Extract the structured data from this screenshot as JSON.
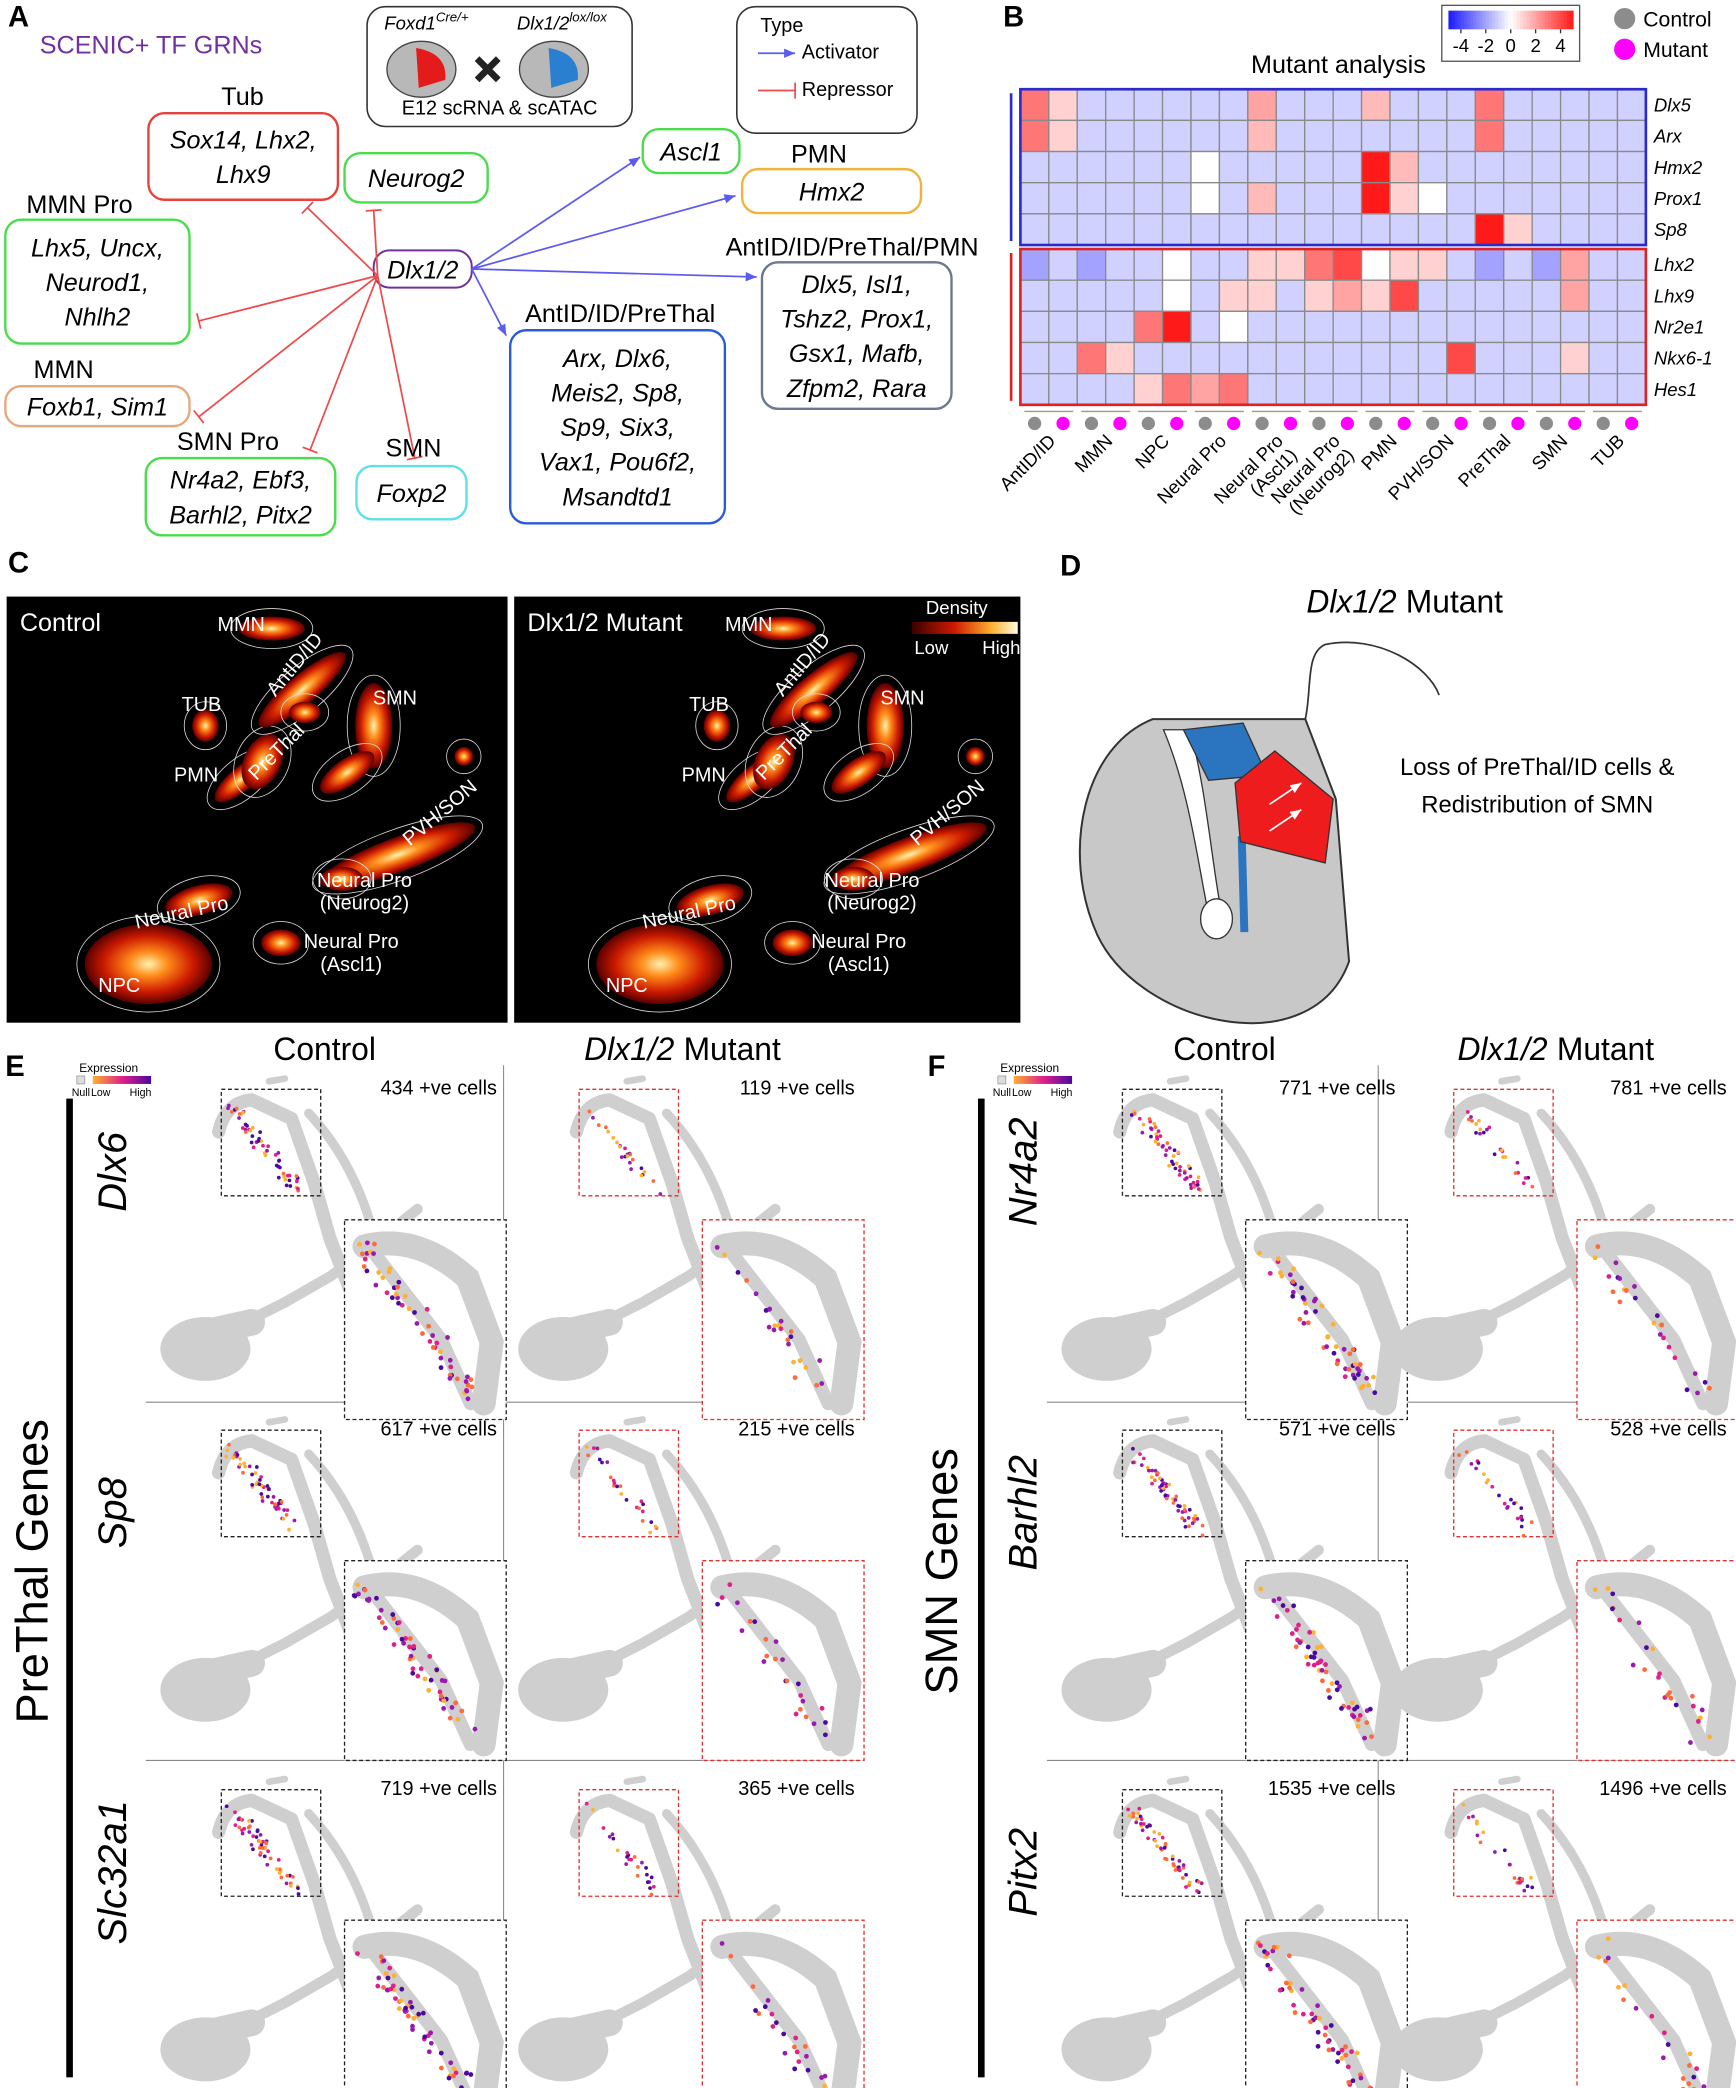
{
  "panel_labels": [
    "A",
    "B",
    "C",
    "D",
    "E",
    "F"
  ],
  "panel_a": {
    "title": "SCENIC+ TF GRNs",
    "cross": {
      "parent_1": "Foxd1",
      "parent_1_allele": "Cre/+",
      "parent_2": "Dlx1/2",
      "parent_2_allele": "lox/lox",
      "assay": "E12 scRNA & scATAC"
    },
    "legend": {
      "title": "Type",
      "activator": "Activator",
      "repressor": "Repressor",
      "activator_color": "#5b5bf0",
      "repressor_color": "#ee4a4a"
    },
    "hub": "Dlx1/2",
    "nodes": [
      {
        "label": "Tub",
        "genes": [
          "Sox14, Lhx2,",
          "Lhx9"
        ],
        "type": "repressor",
        "color": "#e8413b"
      },
      {
        "genes": [
          "Neurog2"
        ],
        "type": "repressor",
        "color": "#4bdc4b"
      },
      {
        "label": "MMN Pro",
        "genes": [
          "Lhx5, Uncx,",
          "Neurod1,",
          "Nhlh2"
        ],
        "type": "repressor",
        "color": "#4bdc4b"
      },
      {
        "label": "MMN",
        "genes": [
          "Foxb1, Sim1"
        ],
        "type": "repressor",
        "color": "#e8a87c"
      },
      {
        "label": "SMN Pro",
        "genes": [
          "Nr4a2, Ebf3,",
          "Barhl2, Pitx2"
        ],
        "type": "repressor",
        "color": "#4bdc4b"
      },
      {
        "label": "SMN",
        "genes": [
          "Foxp2"
        ],
        "type": "repressor",
        "color": "#5ee0e8"
      },
      {
        "genes": [
          "Ascl1"
        ],
        "type": "activator",
        "color": "#4bdc4b"
      },
      {
        "label": "PMN",
        "genes": [
          "Hmx2"
        ],
        "type": "activator",
        "color": "#f0b43c"
      },
      {
        "label": "AntID/ID/PreThal/PMN",
        "genes": [
          "Dlx5, Isl1,",
          "Tshz2, Prox1,",
          "Gsx1, Mafb,",
          "Zfpm2, Rara"
        ],
        "type": "activator",
        "color": "#6a7890"
      },
      {
        "label": "AntID/ID/PreThal",
        "genes": [
          "Arx, Dlx6,",
          "Meis2, Sp8,",
          "Sp9, Six3,",
          "Vax1, Pou6f2,",
          "Msandtd1"
        ],
        "type": "activator",
        "color": "#2a5bd7"
      }
    ]
  },
  "chart_data": {
    "type": "heatmap",
    "title": "Mutant analysis",
    "categories": [
      [
        "AntID/ID"
      ],
      [
        "MMN"
      ],
      [
        "NPC"
      ],
      [
        "Neural Pro"
      ],
      [
        "Neural Pro",
        "(Ascl1)"
      ],
      [
        "Neural Pro",
        "(Neurog2)"
      ],
      [
        "PMN"
      ],
      [
        "PVH/SON"
      ],
      [
        "PreThal"
      ],
      [
        "SMN"
      ],
      [
        "TUB"
      ]
    ],
    "series": [
      {
        "name": "Control",
        "color": "#8c8c8c"
      },
      {
        "name": "Mutant",
        "color": "#ff00ff"
      }
    ],
    "colorbar": {
      "lim": [
        -5,
        5
      ],
      "ticks": [
        -4,
        -2,
        0,
        2,
        4
      ],
      "colors": [
        "#1a1aff",
        "#ffffff",
        "#ff1a1a"
      ]
    },
    "row_groups": [
      {
        "color": "#2b2bcc",
        "rows": [
          {
            "name": "Dlx5",
            "values": [
              3,
              1,
              -1,
              -1,
              -1,
              -1,
              -1,
              -1,
              2,
              -1,
              -1,
              -1,
              1.5,
              -1,
              -1,
              -1,
              3,
              -1,
              -1,
              -1,
              -1,
              -1
            ]
          },
          {
            "name": "Arx",
            "values": [
              3,
              1,
              -1,
              -1,
              -1,
              -1,
              -1,
              -1,
              1.5,
              -1,
              -1,
              -1,
              -1,
              -1,
              -1,
              -1,
              3,
              -1,
              -1,
              -1,
              -1,
              -1
            ]
          },
          {
            "name": "Hmx2",
            "values": [
              -1,
              -1,
              -1,
              -1,
              -1,
              -1,
              0,
              -1,
              -1,
              -1,
              -1,
              -1,
              5,
              1.5,
              -1,
              -1,
              -1,
              -1,
              -1,
              -1,
              -1,
              -1
            ]
          },
          {
            "name": "Prox1",
            "values": [
              -1,
              -1,
              -1,
              -1,
              -1,
              -1,
              0,
              -1,
              1.5,
              -1,
              -1,
              -1,
              5,
              1,
              0,
              -1,
              -1,
              -1,
              -1,
              -1,
              -1,
              -1
            ]
          },
          {
            "name": "Sp8",
            "values": [
              -1,
              -1,
              -1,
              -1,
              -1,
              -1,
              -1,
              -1,
              -1,
              -1,
              -1,
              -1,
              -1,
              -1,
              -1,
              -1,
              5,
              1,
              -1,
              -1,
              -1,
              -1
            ]
          }
        ]
      },
      {
        "color": "#dd2222",
        "rows": [
          {
            "name": "Lhx2",
            "values": [
              -2,
              -1,
              -2,
              -1,
              -1,
              0,
              -1,
              -1,
              1,
              1,
              3,
              4,
              0,
              1,
              1,
              -1,
              -2,
              -1,
              -2,
              2,
              -1,
              -1
            ]
          },
          {
            "name": "Lhx9",
            "values": [
              -1,
              -1,
              -1,
              -1,
              -1,
              0,
              -1,
              1,
              1,
              -1,
              1,
              2,
              1,
              4,
              -1,
              -1,
              -1,
              -1,
              -1,
              2,
              -1,
              -1
            ]
          },
          {
            "name": "Nr2e1",
            "values": [
              -1,
              -1,
              -1,
              -1,
              3,
              5,
              -1,
              0,
              -1,
              -1,
              -1,
              -1,
              -1,
              -1,
              -1,
              -1,
              -1,
              -1,
              -1,
              -1,
              -1,
              -1
            ]
          },
          {
            "name": "Nkx6-1",
            "values": [
              -1,
              -1,
              3,
              1,
              -1,
              -1,
              -1,
              -1,
              -1,
              -1,
              -1,
              -1,
              -1,
              -1,
              -1,
              4,
              -1,
              -1,
              -1,
              1,
              -1,
              -1
            ]
          },
          {
            "name": "Hes1",
            "values": [
              -1,
              -1,
              -1,
              -1,
              1,
              3,
              2,
              3,
              -1,
              -1,
              -1,
              -1,
              -1,
              -1,
              -1,
              -1,
              -1,
              -1,
              -1,
              -1,
              -1,
              -1
            ]
          }
        ]
      }
    ]
  },
  "panel_c": {
    "maps": [
      "Control",
      "Dlx1/2 Mutant"
    ],
    "clusters": [
      [
        "MMN"
      ],
      [
        "AntID/ID"
      ],
      [
        "TUB"
      ],
      [
        "SMN"
      ],
      [
        "PMN"
      ],
      [
        "PreThal"
      ],
      [
        "PVH/SON"
      ],
      [
        "Neural Pro"
      ],
      [
        "Neural Pro",
        "(Neurog2)"
      ],
      [
        "Neural Pro",
        "(Ascl1)"
      ],
      [
        "NPC"
      ]
    ],
    "legend": {
      "title": "Density",
      "low": "Low",
      "high": "High"
    }
  },
  "panel_d": {
    "title": [
      "Dlx1/2",
      "Mutant"
    ],
    "caption": [
      "Loss of PreThal/ID cells &",
      "Redistribution of SMN"
    ]
  },
  "panel_e": {
    "columns": [
      [
        "Control"
      ],
      [
        "Dlx1/2",
        "Mutant"
      ]
    ],
    "group": "PreThal Genes",
    "legend": {
      "title": "Expression",
      "null": "Null",
      "low": "Low",
      "high": "High"
    },
    "genes": [
      {
        "name": "Dlx6",
        "counts": [
          "434 +ve cells",
          "119 +ve cells"
        ]
      },
      {
        "name": "Sp8",
        "counts": [
          "617 +ve cells",
          "215 +ve cells"
        ]
      },
      {
        "name": "Slc32a1",
        "counts": [
          "719 +ve cells",
          "365 +ve cells"
        ]
      }
    ]
  },
  "panel_f": {
    "columns": [
      [
        "Control"
      ],
      [
        "Dlx1/2",
        "Mutant"
      ]
    ],
    "group": "SMN Genes",
    "legend": {
      "title": "Expression",
      "null": "Null",
      "low": "Low",
      "high": "High"
    },
    "genes": [
      {
        "name": "Nr4a2",
        "counts": [
          "771 +ve cells",
          "781 +ve cells"
        ]
      },
      {
        "name": "Barhl2",
        "counts": [
          "571 +ve cells",
          "528 +ve cells"
        ]
      },
      {
        "name": "Pitx2",
        "counts": [
          "1535 +ve cells",
          "1496 +ve cells"
        ]
      }
    ]
  }
}
